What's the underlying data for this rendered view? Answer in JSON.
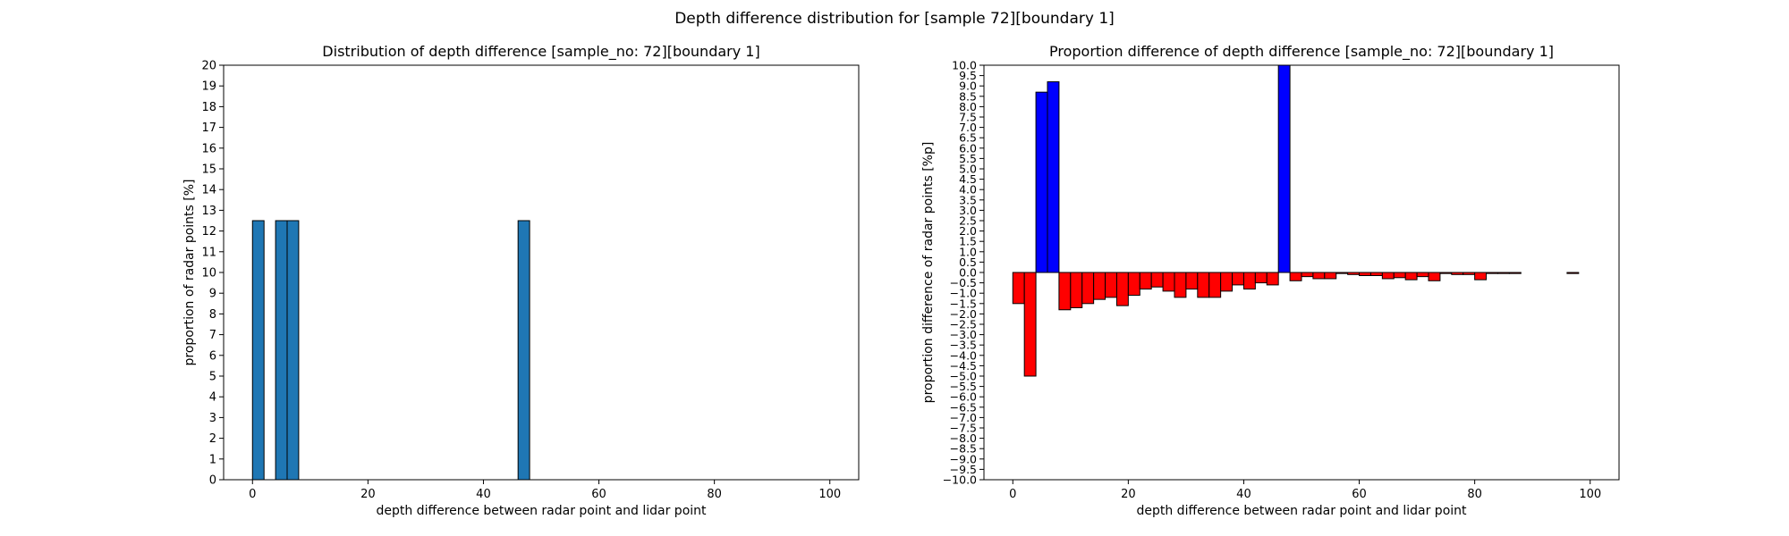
{
  "figure": {
    "suptitle": "Depth difference distribution for [sample 72][boundary 1]"
  },
  "colors": {
    "left_bar": "#1f77b4",
    "positive_bar": "#0000ff",
    "negative_bar": "#ff0000",
    "edge": "#000000"
  },
  "chart_data": [
    {
      "type": "bar",
      "title": "Distribution of depth difference [sample_no: 72][boundary 1]",
      "xlabel": "depth difference between radar point and lidar point",
      "ylabel": "proportion of radar points [%]",
      "xlim": [
        -5,
        105
      ],
      "ylim": [
        0,
        20
      ],
      "bin_width": 2,
      "xticks": [
        0,
        20,
        40,
        60,
        80,
        100
      ],
      "yticks": [
        0,
        1,
        2,
        3,
        4,
        5,
        6,
        7,
        8,
        9,
        10,
        11,
        12,
        13,
        14,
        15,
        16,
        17,
        18,
        19,
        20
      ],
      "x": [
        1,
        5,
        7,
        47
      ],
      "values": [
        12.5,
        12.5,
        12.5,
        12.5
      ],
      "grid": false,
      "legend": "none"
    },
    {
      "type": "bar",
      "title": "Proportion difference of depth difference [sample_no: 72][boundary 1]",
      "xlabel": "depth difference between radar point and lidar point",
      "ylabel": "proportion difference of radar points [%p]",
      "xlim": [
        -5,
        105
      ],
      "ylim": [
        -10,
        10
      ],
      "bin_width": 2,
      "xticks": [
        0,
        20,
        40,
        60,
        80,
        100
      ],
      "yticks": [
        "−10.0",
        "−9.5",
        "−9.0",
        "−8.5",
        "−8.0",
        "−7.5",
        "−7.0",
        "−6.5",
        "−6.0",
        "−5.5",
        "−5.0",
        "−4.5",
        "−4.0",
        "−3.5",
        "−3.0",
        "−2.5",
        "−2.0",
        "−1.5",
        "−1.0",
        "−0.5",
        "0.0",
        "0.5",
        "1.0",
        "1.5",
        "2.0",
        "2.5",
        "3.0",
        "3.5",
        "4.0",
        "4.5",
        "5.0",
        "5.5",
        "6.0",
        "6.5",
        "7.0",
        "7.5",
        "8.0",
        "8.5",
        "9.0",
        "9.5",
        "10.0"
      ],
      "x": [
        1,
        3,
        5,
        7,
        9,
        11,
        13,
        15,
        17,
        19,
        21,
        23,
        25,
        27,
        29,
        31,
        33,
        35,
        37,
        39,
        41,
        43,
        45,
        47,
        49,
        51,
        53,
        55,
        57,
        59,
        61,
        63,
        65,
        67,
        69,
        71,
        73,
        75,
        77,
        79,
        81,
        83,
        85,
        87,
        89,
        91,
        93,
        95,
        97,
        99
      ],
      "values": [
        -1.5,
        -5.0,
        8.7,
        9.2,
        -1.8,
        -1.7,
        -1.5,
        -1.3,
        -1.2,
        -1.6,
        -1.1,
        -0.8,
        -0.7,
        -0.9,
        -1.2,
        -0.8,
        -1.2,
        -1.2,
        -0.9,
        -0.6,
        -0.8,
        -0.5,
        -0.6,
        12.5,
        -0.4,
        -0.2,
        -0.3,
        -0.3,
        -0.05,
        -0.1,
        -0.15,
        -0.15,
        -0.3,
        -0.25,
        -0.35,
        -0.2,
        -0.4,
        -0.05,
        -0.1,
        -0.1,
        -0.35,
        -0.05,
        -0.05,
        -0.05,
        0,
        0,
        0,
        0,
        -0.05,
        0
      ],
      "grid": false,
      "legend": "none"
    }
  ]
}
